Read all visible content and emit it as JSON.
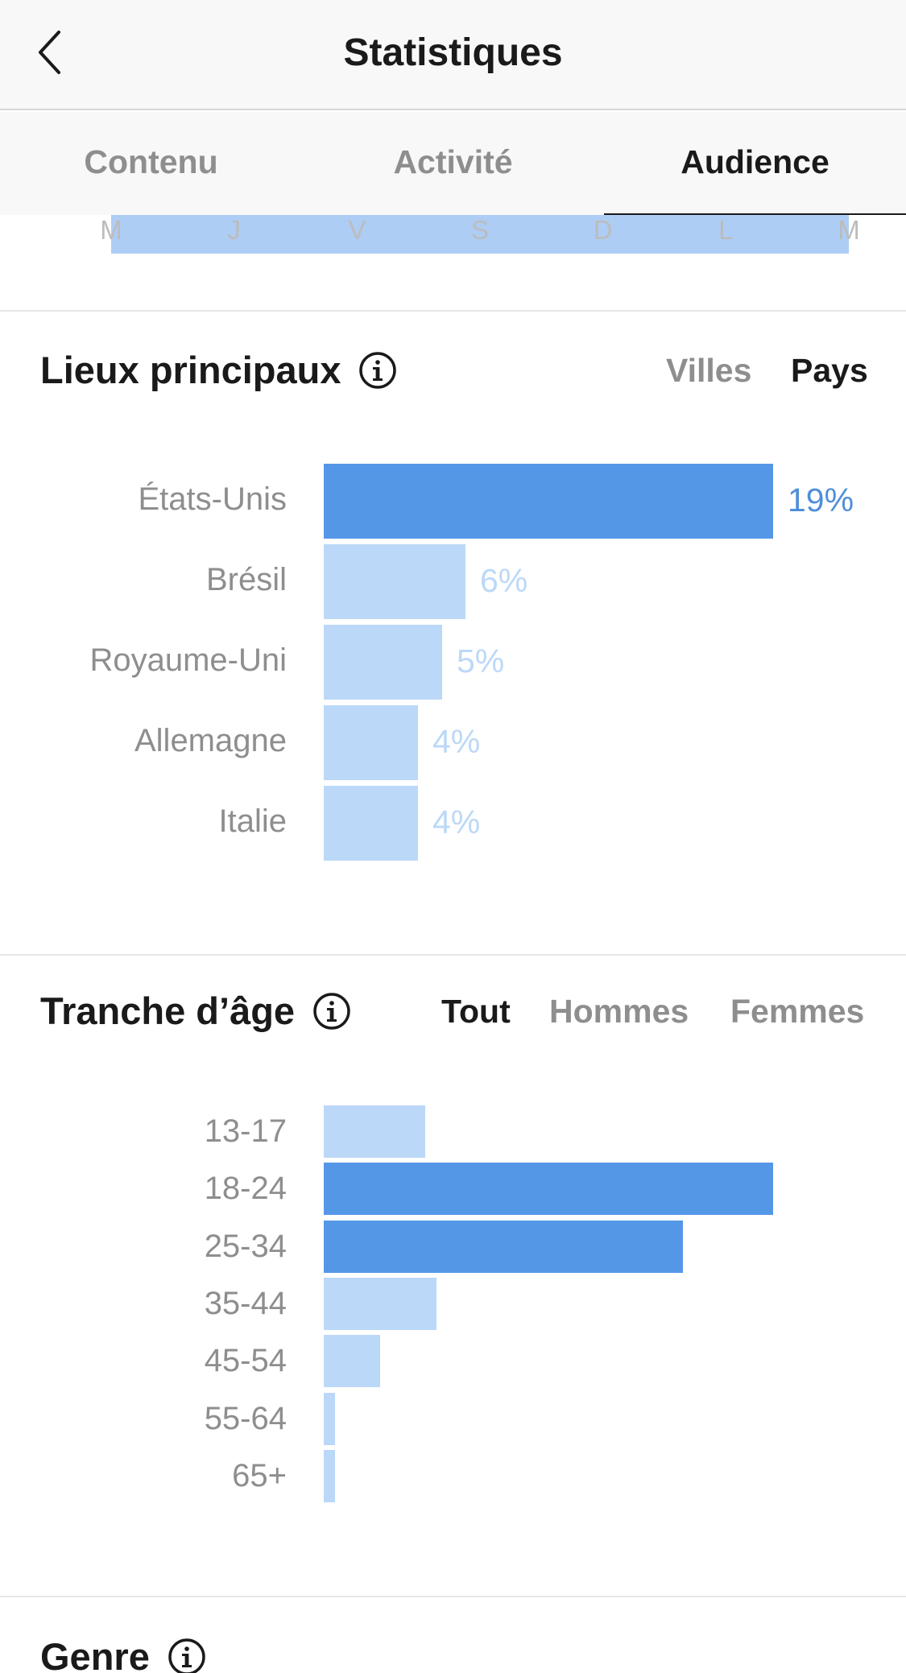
{
  "nav": {
    "title": "Statistiques"
  },
  "tabs": [
    {
      "label": "Contenu",
      "active": false
    },
    {
      "label": "Activité",
      "active": false
    },
    {
      "label": "Audience",
      "active": true
    }
  ],
  "days": [
    "M",
    "J",
    "V",
    "S",
    "D",
    "L",
    "M"
  ],
  "locations": {
    "title": "Lieux principaux",
    "filters": [
      {
        "label": "Villes",
        "active": false
      },
      {
        "label": "Pays",
        "active": true
      }
    ]
  },
  "age": {
    "title": "Tranche d’âge",
    "filters": [
      {
        "label": "Tout",
        "active": true
      },
      {
        "label": "Hommes",
        "active": false
      },
      {
        "label": "Femmes",
        "active": false
      }
    ]
  },
  "gender": {
    "title": "Genre"
  },
  "colors": {
    "highlight": "#5597e7",
    "muted": "#bcd8f8",
    "pct_highlight": "#4f8ed9"
  },
  "chart_data": [
    {
      "type": "bar",
      "orientation": "horizontal",
      "categories": [
        "États-Unis",
        "Brésil",
        "Royaume-Uni",
        "Allemagne",
        "Italie"
      ],
      "values": [
        19,
        6,
        5,
        4,
        4
      ],
      "value_labels": [
        "19%",
        "6%",
        "5%",
        "4%",
        "4%"
      ],
      "highlighted": [
        "États-Unis"
      ],
      "unit": "%"
    },
    {
      "type": "bar",
      "orientation": "horizontal",
      "categories": [
        "13-17",
        "18-24",
        "25-34",
        "35-44",
        "45-54",
        "55-64",
        "65+"
      ],
      "values": [
        9,
        40,
        32,
        10,
        5,
        1,
        1
      ],
      "highlighted": [
        "18-24",
        "25-34"
      ],
      "unit": "%"
    }
  ]
}
